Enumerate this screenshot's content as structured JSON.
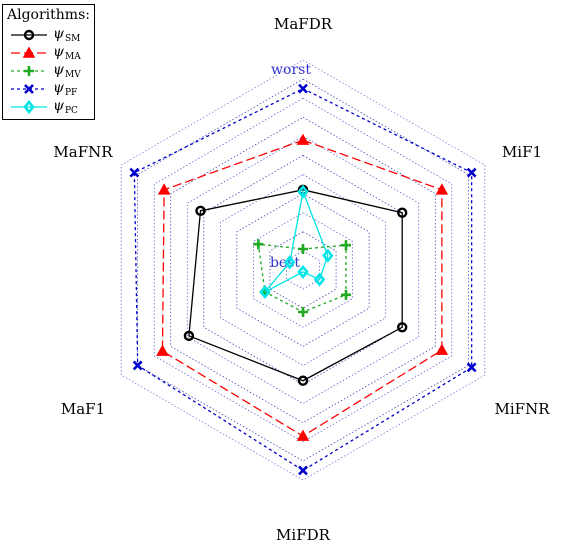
{
  "chart_data": {
    "type": "radar",
    "axes": [
      "MaFDR",
      "MiF1",
      "MiFNR",
      "MiFDR",
      "MaF1",
      "MaFNR"
    ],
    "scale_outer_label": "worst",
    "scale_inner_label": "best",
    "rings": 9,
    "grid": true,
    "legend": {
      "title": "Algorithms:",
      "position": "top-left"
    },
    "series": [
      {
        "name": "ψ",
        "sub": "SM",
        "color": "#000000",
        "dash": "solid",
        "marker": "circle",
        "values": [
          4.2,
          6.0,
          6.0,
          5.8,
          6.9,
          6.2
        ]
      },
      {
        "name": "ψ",
        "sub": "MA",
        "color": "#ff0000",
        "dash": "dashed",
        "marker": "triangle",
        "values": [
          6.8,
          8.4,
          8.4,
          8.7,
          8.5,
          8.4
        ]
      },
      {
        "name": "ψ",
        "sub": "MV",
        "color": "#22aa22",
        "dash": "dashdot",
        "marker": "plus",
        "values": [
          1.1,
          2.6,
          2.6,
          2.2,
          2.3,
          2.7
        ]
      },
      {
        "name": "ψ",
        "sub": "PF",
        "color": "#0000cc",
        "dash": "dashdot",
        "marker": "x",
        "values": [
          9.5,
          10.2,
          10.2,
          10.5,
          10.0,
          10.2
        ]
      },
      {
        "name": "ψ",
        "sub": "PC",
        "color": "#00e5e5",
        "dash": "solid",
        "marker": "diamond",
        "values": [
          4.1,
          1.5,
          1.0,
          0.1,
          2.3,
          0.8
        ]
      }
    ]
  }
}
